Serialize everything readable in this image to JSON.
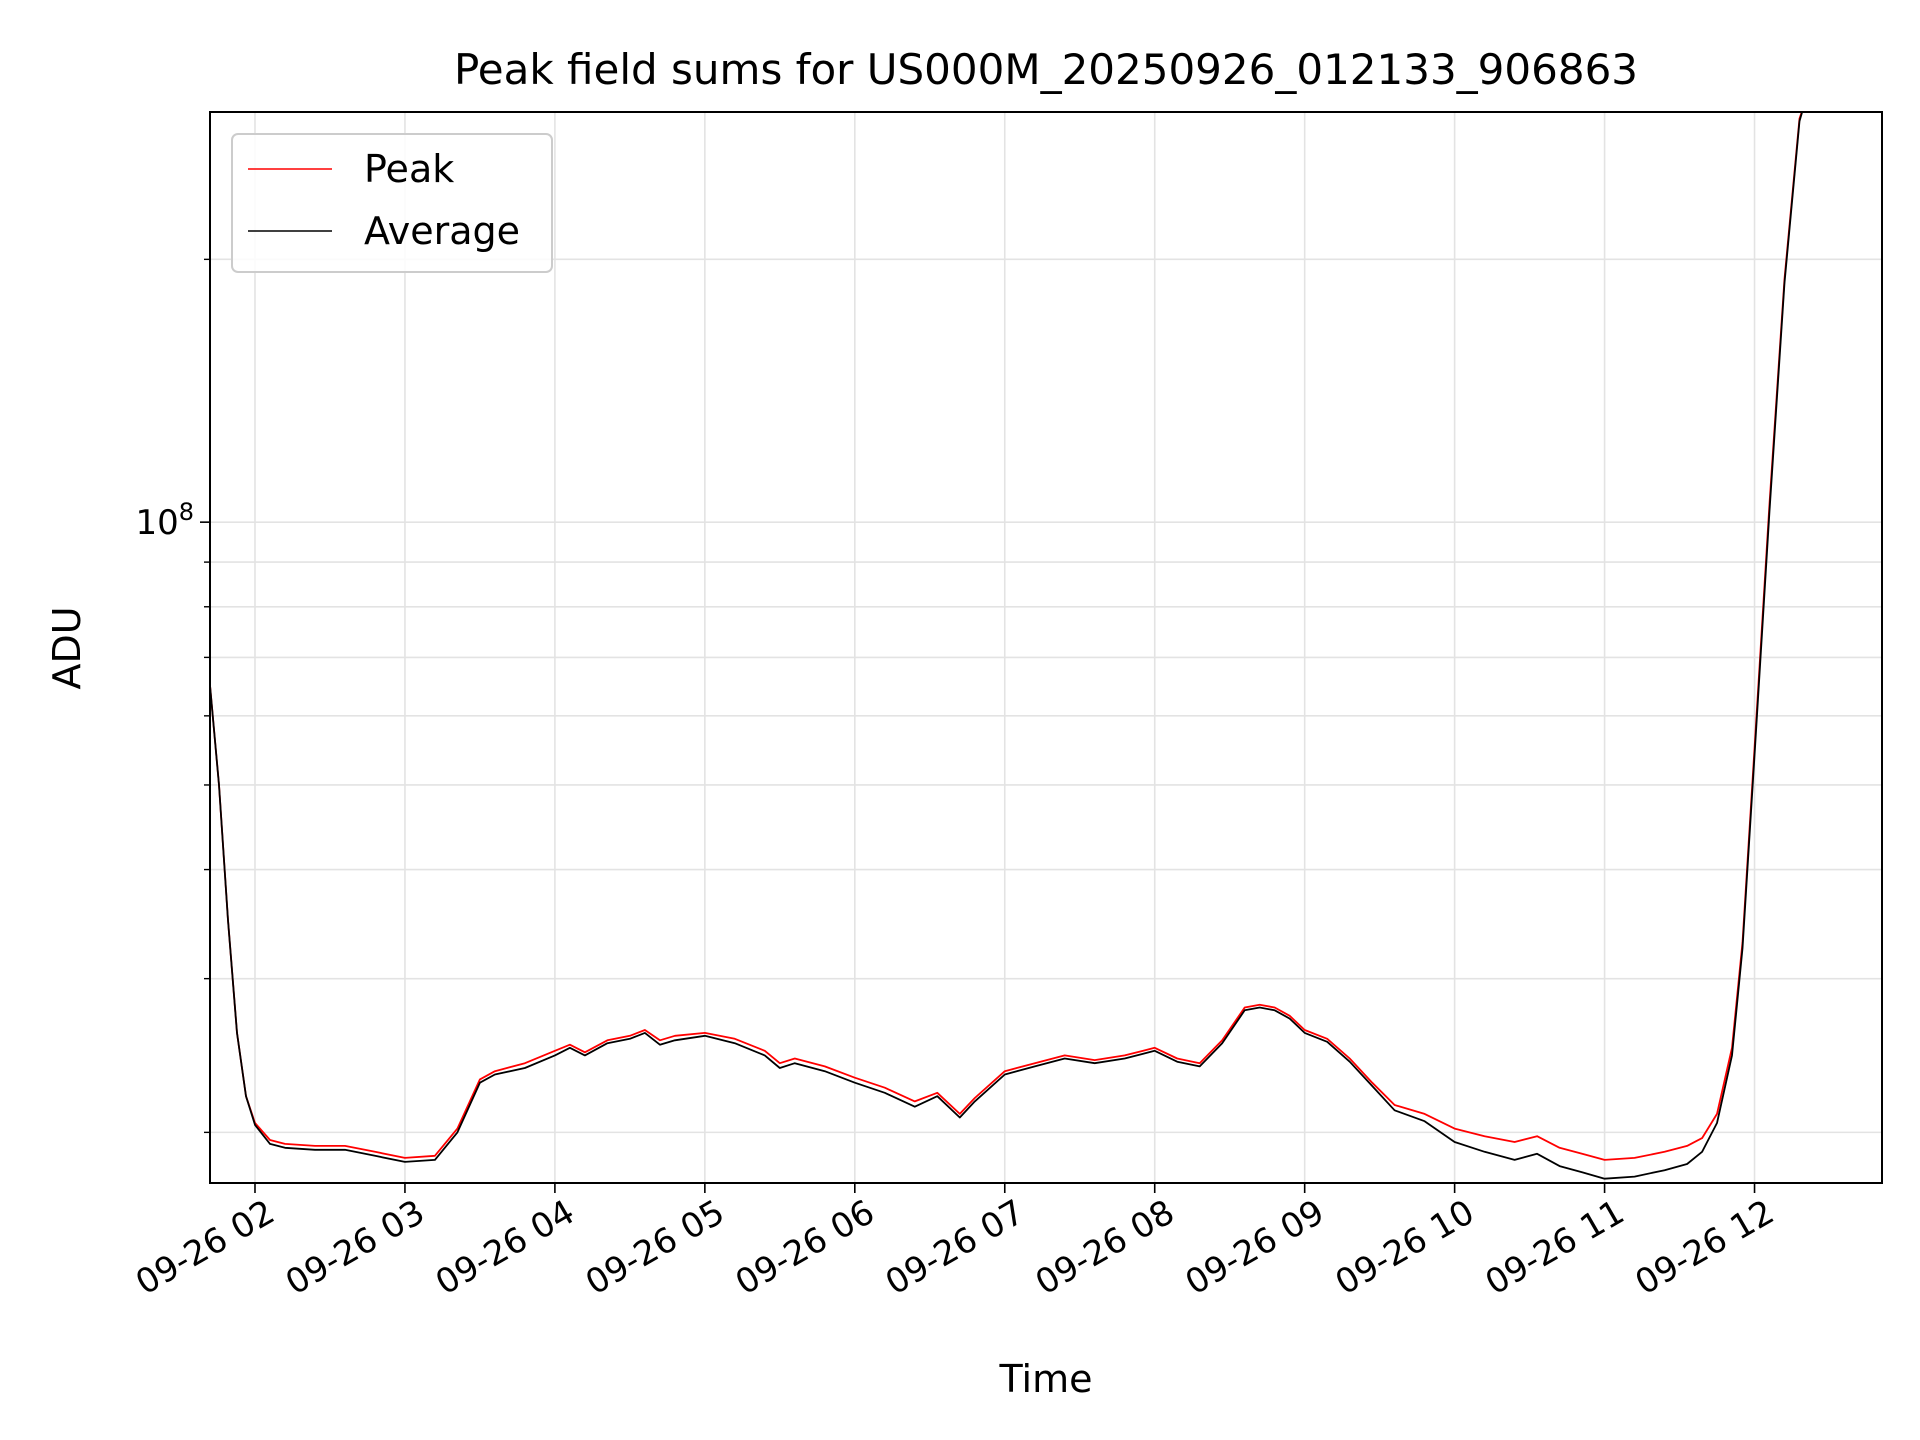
{
  "chart_data": {
    "type": "line",
    "title": "Peak field sums for US000M_20250926_012133_906863",
    "xlabel": "Time",
    "ylabel": "ADU",
    "yscale": "log",
    "ylim": [
      17500000.0,
      295000000.0
    ],
    "xlim_hours": [
      1.7,
      12.85
    ],
    "x_tick_hours": [
      2,
      3,
      4,
      5,
      6,
      7,
      8,
      9,
      10,
      11,
      12
    ],
    "x_tick_labels": [
      "09-26 02",
      "09-26 03",
      "09-26 04",
      "09-26 05",
      "09-26 06",
      "09-26 07",
      "09-26 08",
      "09-26 09",
      "09-26 10",
      "09-26 11",
      "09-26 12"
    ],
    "y_major_ticks": [
      {
        "value": 100000000.0,
        "base": "10",
        "exp": "8"
      }
    ],
    "y_minor_ticks": [
      20000000.0,
      30000000.0,
      40000000.0,
      50000000.0,
      60000000.0,
      70000000.0,
      80000000.0,
      90000000.0,
      200000000.0
    ],
    "grid": true,
    "legend": {
      "position": "top-left",
      "entries": [
        "Peak",
        "Average"
      ]
    },
    "series": [
      {
        "name": "Peak",
        "color": "#ff0000",
        "x_hours": [
          1.7,
          1.76,
          1.82,
          1.88,
          1.94,
          2.0,
          2.1,
          2.2,
          2.4,
          2.6,
          2.8,
          3.0,
          3.2,
          3.35,
          3.5,
          3.6,
          3.8,
          4.0,
          4.1,
          4.2,
          4.35,
          4.5,
          4.6,
          4.7,
          4.8,
          5.0,
          5.2,
          5.4,
          5.5,
          5.6,
          5.8,
          6.0,
          6.2,
          6.4,
          6.55,
          6.7,
          6.8,
          7.0,
          7.2,
          7.4,
          7.6,
          7.8,
          8.0,
          8.15,
          8.3,
          8.45,
          8.6,
          8.7,
          8.8,
          8.9,
          9.0,
          9.15,
          9.3,
          9.45,
          9.6,
          9.8,
          10.0,
          10.2,
          10.4,
          10.55,
          10.7,
          10.85,
          11.0,
          11.2,
          11.4,
          11.55,
          11.65,
          11.75,
          11.85,
          11.92,
          12.0,
          12.1,
          12.2,
          12.3,
          12.33
        ],
        "values": [
          65000000.0,
          50000000.0,
          35000000.0,
          26000000.0,
          22000000.0,
          20500000.0,
          19600000.0,
          19400000.0,
          19300000.0,
          19300000.0,
          19000000.0,
          18700000.0,
          18800000.0,
          20200000.0,
          23000000.0,
          23500000.0,
          24000000.0,
          24800000.0,
          25200000.0,
          24700000.0,
          25500000.0,
          25800000.0,
          26200000.0,
          25500000.0,
          25800000.0,
          26000000.0,
          25600000.0,
          24800000.0,
          24000000.0,
          24300000.0,
          23800000.0,
          23100000.0,
          22500000.0,
          21700000.0,
          22200000.0,
          21000000.0,
          21900000.0,
          23500000.0,
          24000000.0,
          24500000.0,
          24200000.0,
          24500000.0,
          25000000.0,
          24300000.0,
          24000000.0,
          25500000.0,
          27800000.0,
          28000000.0,
          27800000.0,
          27200000.0,
          26200000.0,
          25600000.0,
          24300000.0,
          22800000.0,
          21500000.0,
          21000000.0,
          20200000.0,
          19800000.0,
          19500000.0,
          19800000.0,
          19200000.0,
          18900000.0,
          18600000.0,
          18700000.0,
          19000000.0,
          19300000.0,
          19700000.0,
          21000000.0,
          25000000.0,
          33000000.0,
          55000000.0,
          105000000.0,
          190000000.0,
          290000000.0,
          300000000.0
        ]
      },
      {
        "name": "Average",
        "color": "#000000",
        "x_hours": [
          1.7,
          1.76,
          1.82,
          1.88,
          1.94,
          2.0,
          2.1,
          2.2,
          2.4,
          2.6,
          2.8,
          3.0,
          3.2,
          3.35,
          3.5,
          3.6,
          3.8,
          4.0,
          4.1,
          4.2,
          4.35,
          4.5,
          4.6,
          4.7,
          4.8,
          5.0,
          5.2,
          5.4,
          5.5,
          5.6,
          5.8,
          6.0,
          6.2,
          6.4,
          6.55,
          6.7,
          6.8,
          7.0,
          7.2,
          7.4,
          7.6,
          7.8,
          8.0,
          8.15,
          8.3,
          8.45,
          8.6,
          8.7,
          8.8,
          8.9,
          9.0,
          9.15,
          9.3,
          9.45,
          9.6,
          9.8,
          10.0,
          10.2,
          10.4,
          10.55,
          10.7,
          10.85,
          11.0,
          11.2,
          11.4,
          11.55,
          11.65,
          11.75,
          11.85,
          11.92,
          12.0,
          12.1,
          12.2,
          12.3,
          12.33
        ],
        "values": [
          65000000.0,
          50000000.0,
          35000000.0,
          26000000.0,
          22000000.0,
          20400000.0,
          19400000.0,
          19200000.0,
          19100000.0,
          19100000.0,
          18800000.0,
          18500000.0,
          18600000.0,
          20000000.0,
          22800000.0,
          23300000.0,
          23700000.0,
          24500000.0,
          25000000.0,
          24500000.0,
          25300000.0,
          25600000.0,
          26000000.0,
          25200000.0,
          25500000.0,
          25800000.0,
          25300000.0,
          24500000.0,
          23700000.0,
          24000000.0,
          23500000.0,
          22800000.0,
          22200000.0,
          21400000.0,
          22000000.0,
          20800000.0,
          21700000.0,
          23300000.0,
          23800000.0,
          24300000.0,
          24000000.0,
          24300000.0,
          24800000.0,
          24100000.0,
          23800000.0,
          25300000.0,
          27600000.0,
          27800000.0,
          27600000.0,
          27000000.0,
          26000000.0,
          25400000.0,
          24100000.0,
          22600000.0,
          21200000.0,
          20600000.0,
          19500000.0,
          19000000.0,
          18600000.0,
          18900000.0,
          18300000.0,
          18000000.0,
          17700000.0,
          17800000.0,
          18100000.0,
          18400000.0,
          19000000.0,
          20500000.0,
          24500000.0,
          32500000.0,
          54000000.0,
          103000000.0,
          188000000.0,
          288000000.0,
          300000000.0
        ]
      }
    ]
  }
}
